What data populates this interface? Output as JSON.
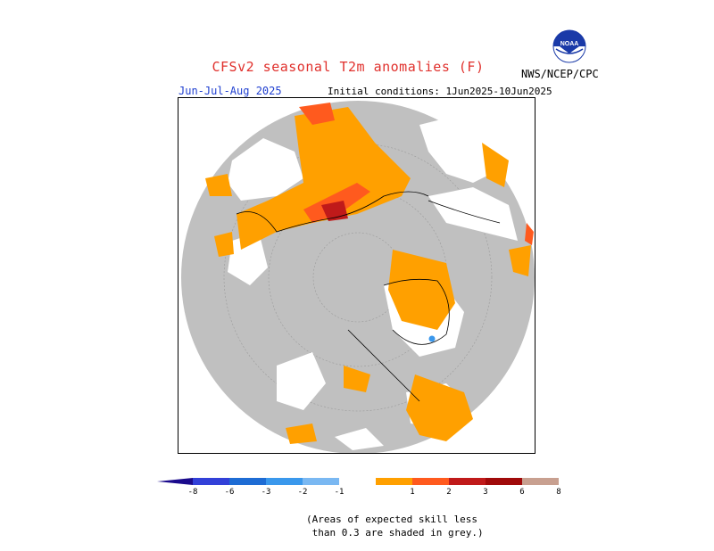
{
  "title": "CFSv2 seasonal T2m anomalies (F)",
  "season": "Jun-Jul-Aug 2025",
  "initial_conditions": "Initial conditions: 1Jun2025-10Jun2025",
  "agency": "NWS/NCEP/CPC",
  "logo_text": "NOAA",
  "legend": {
    "bins": [
      {
        "color": "#1a0a8c"
      },
      {
        "color": "#3240d8"
      },
      {
        "color": "#1e6cd4"
      },
      {
        "color": "#3a98ec"
      },
      {
        "color": "#7ab8f2"
      },
      {
        "color": "#ffffff"
      },
      {
        "color": "#ffa000"
      },
      {
        "color": "#ff5a1e"
      },
      {
        "color": "#c01a1a"
      },
      {
        "color": "#a00a0a"
      },
      {
        "color": "#c8a090"
      },
      {
        "color": "#8a5040"
      }
    ],
    "ticks": [
      "-8",
      "-6",
      "-3",
      "-2",
      "-1",
      "1",
      "2",
      "3",
      "6",
      "8"
    ]
  },
  "note": "(Areas of expected skill less\n than 0.3 are shaded in grey.)",
  "colors": {
    "grey_low_skill": "#c0c0c0",
    "no_signal": "#ffffff",
    "warm1": "#ffa000",
    "warm2": "#ff5a1e",
    "warm3": "#c01a1a",
    "cool1": "#3a98ec",
    "title": "#e0302c",
    "season": "#1f3fd0"
  }
}
